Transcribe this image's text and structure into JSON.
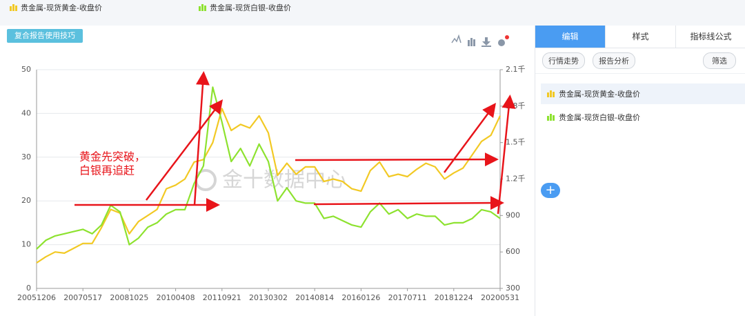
{
  "toolbar": {
    "button": "复合报告使用技巧"
  },
  "tabs": [
    "编辑",
    "样式",
    "指标线公式"
  ],
  "actions": [
    "行情走势",
    "报告分析",
    "筛选"
  ],
  "watermark": "金十数据中心",
  "chart_data": {
    "type": "line",
    "annotation": [
      "黄金先突破，",
      "白银再追赶"
    ],
    "categories": [
      "20051206",
      null,
      null,
      null,
      null,
      "20070517",
      null,
      null,
      null,
      null,
      "20081025",
      null,
      null,
      null,
      null,
      "20100408",
      null,
      null,
      null,
      null,
      "20110921",
      null,
      null,
      null,
      null,
      "20130302",
      null,
      null,
      null,
      null,
      "20140814",
      null,
      null,
      null,
      null,
      "20160126",
      null,
      null,
      null,
      null,
      "20170711",
      null,
      null,
      null,
      null,
      "20181224",
      null,
      null,
      null,
      null,
      "20200531"
    ],
    "series": [
      {
        "name": "贵金属-现货黄金-收盘价",
        "color": "#f2c924",
        "axis": "y2",
        "values": [
          510,
          560,
          600,
          590,
          630,
          670,
          670,
          800,
          950,
          920,
          750,
          850,
          900,
          950,
          1120,
          1150,
          1200,
          1340,
          1360,
          1500,
          1780,
          1600,
          1650,
          1620,
          1720,
          1580,
          1230,
          1330,
          1240,
          1300,
          1300,
          1180,
          1200,
          1180,
          1120,
          1100,
          1270,
          1340,
          1220,
          1240,
          1220,
          1280,
          1330,
          1300,
          1200,
          1250,
          1290,
          1400,
          1510,
          1560,
          1720
        ]
      },
      {
        "name": "贵金属-现货白银-收盘价",
        "color": "#8de22f",
        "values": [
          9,
          11,
          12,
          12.5,
          13,
          13.5,
          12.5,
          14.5,
          19,
          17.5,
          10,
          11.5,
          14,
          15,
          17,
          18,
          18,
          24,
          28,
          46,
          38,
          29,
          32,
          28,
          33,
          29,
          20,
          23,
          20,
          19.5,
          19.5,
          16,
          16.5,
          15.5,
          14.5,
          14,
          17.5,
          19.5,
          17,
          18,
          16,
          17,
          16.5,
          16.5,
          14.5,
          15,
          15,
          16,
          18,
          17.5,
          16
        ]
      }
    ],
    "ylim": [
      0,
      50
    ],
    "yticks": [
      0,
      10,
      20,
      30,
      40,
      50
    ],
    "y2lim": [
      300,
      2100
    ],
    "y2ticks": [
      300,
      600,
      900,
      {
        "value": 1200,
        "label": "1.2千"
      },
      {
        "value": 1500,
        "label": "1.5千"
      },
      {
        "value": 1800,
        "label": "1.8千"
      },
      {
        "value": 2100,
        "label": "2.1千"
      }
    ],
    "grid": true
  }
}
